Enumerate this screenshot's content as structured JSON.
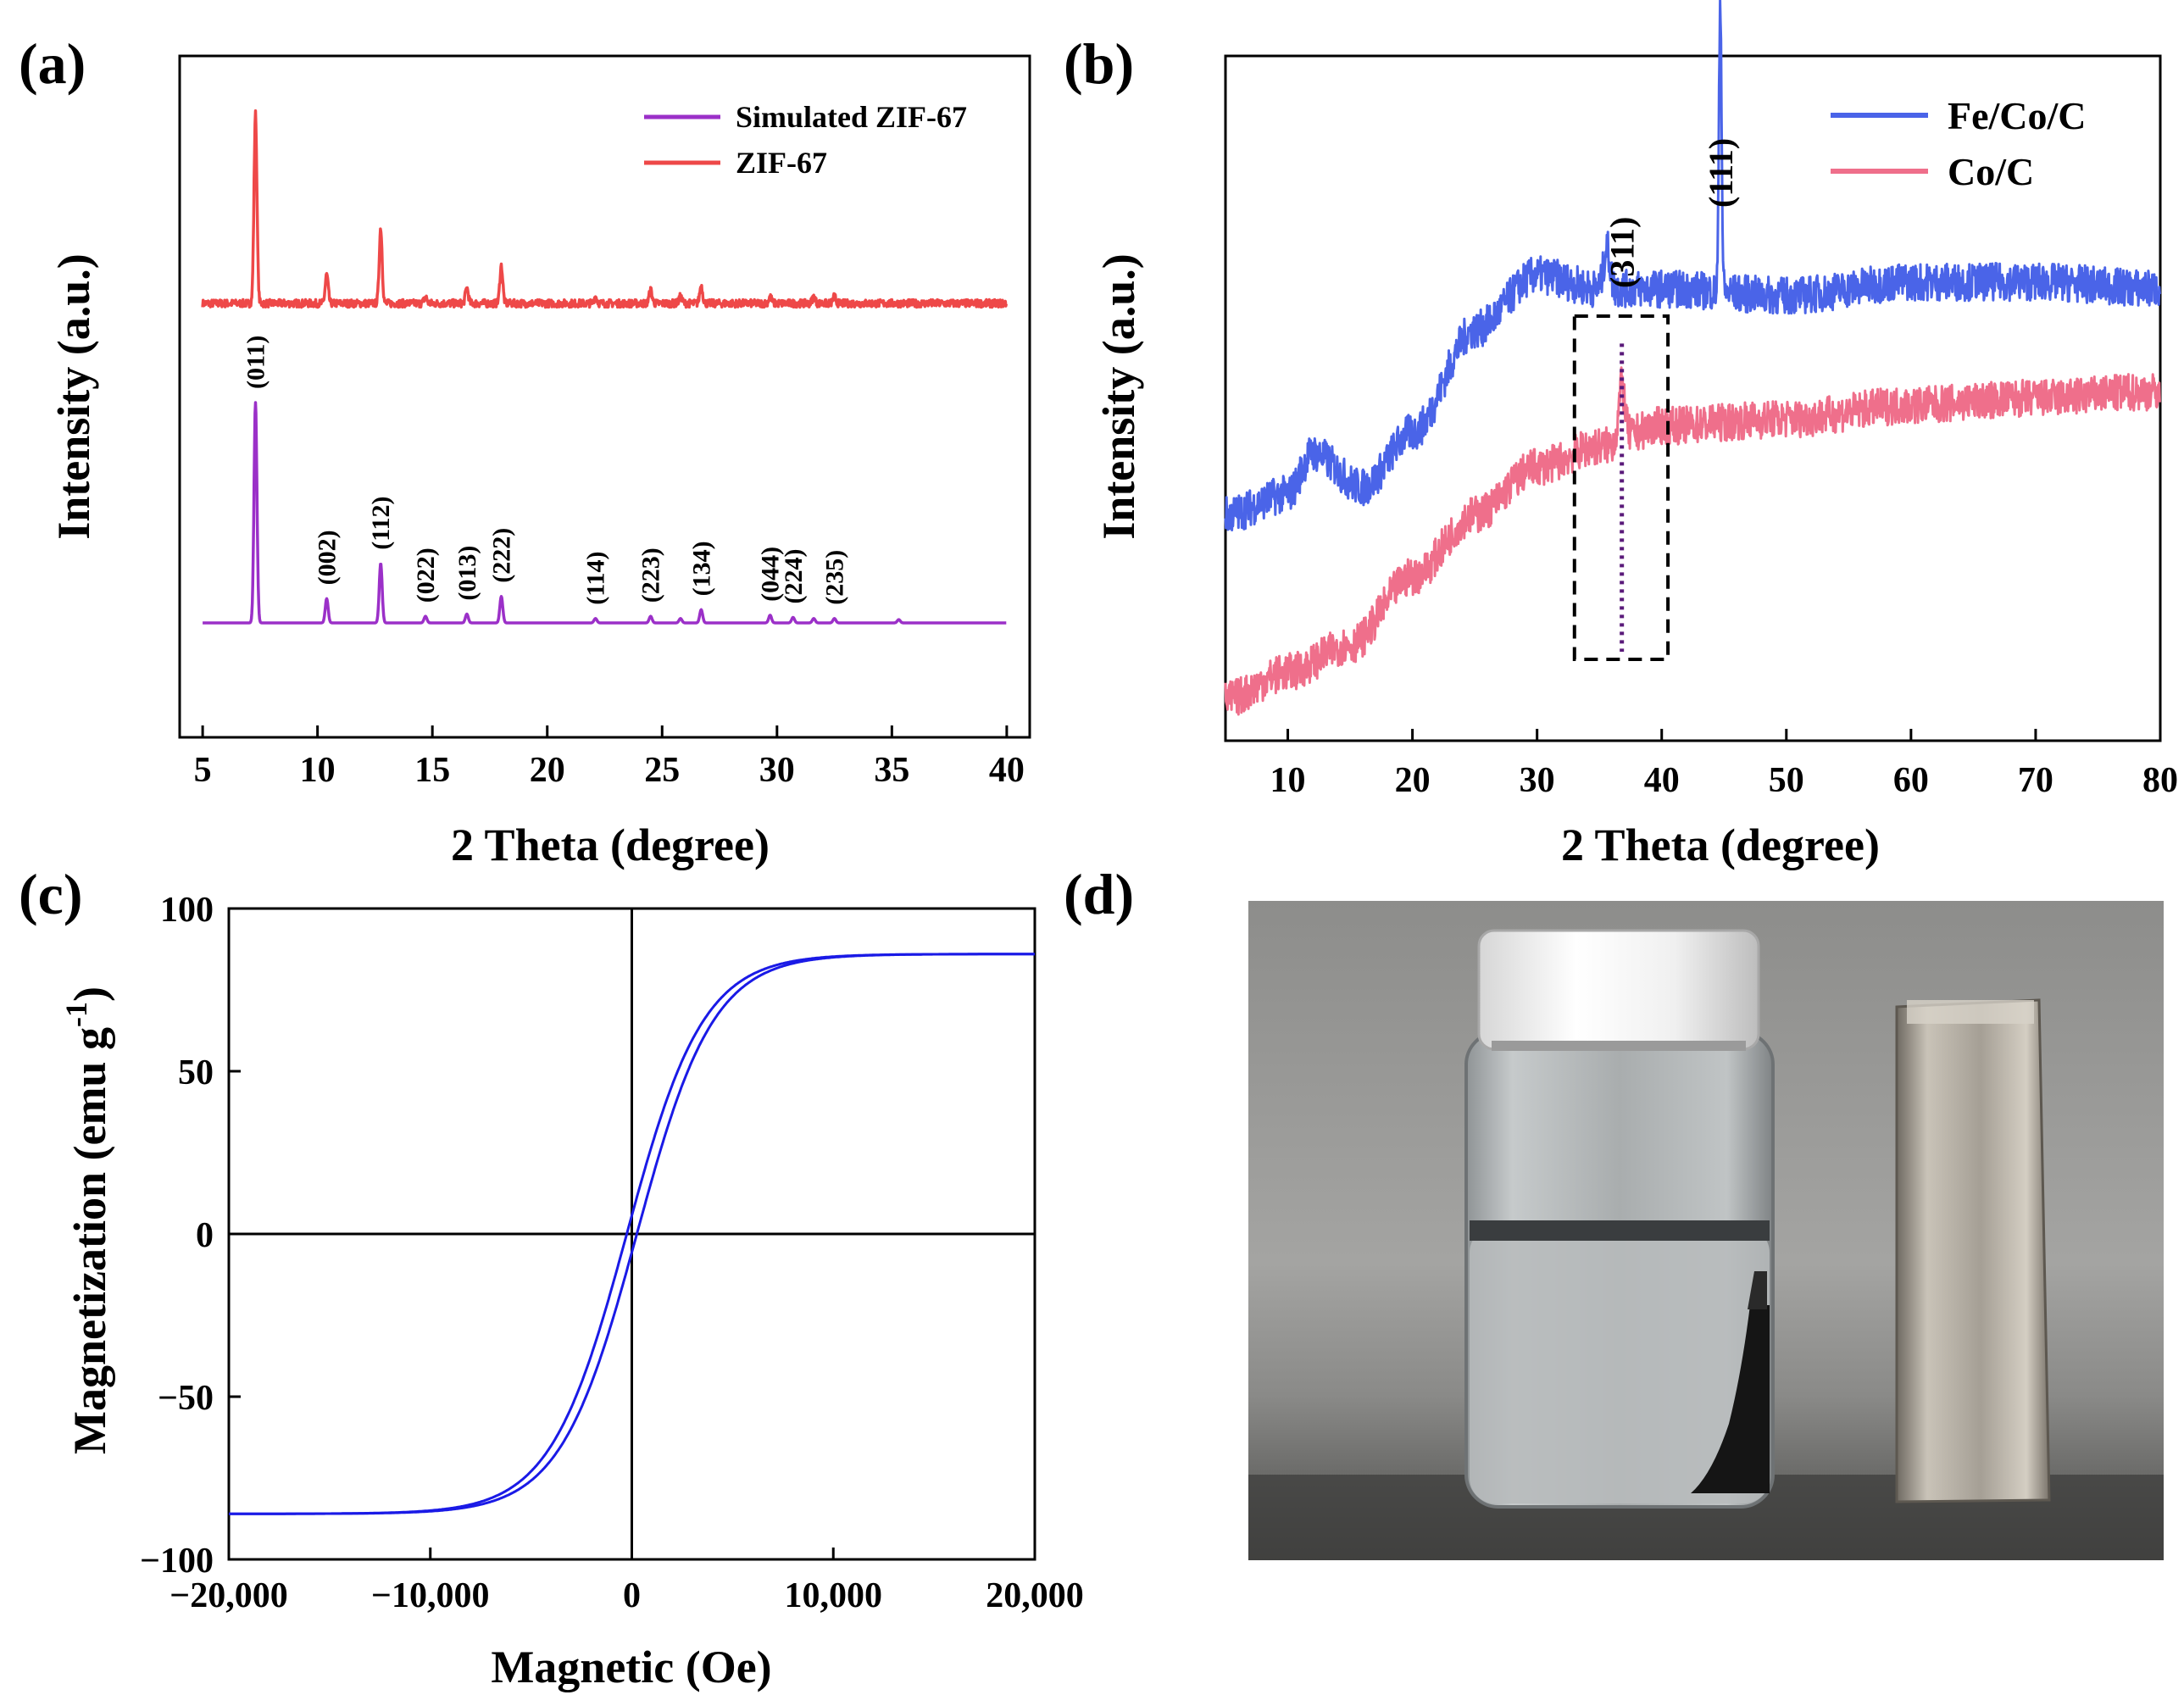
{
  "chart_data": [
    {
      "id": "a",
      "panel_label": "(a)",
      "type": "line",
      "xlabel": "2 Theta (degree)",
      "ylabel": "Intensity (a.u.)",
      "xlim": [
        4,
        41
      ],
      "x_ticks": [
        5,
        10,
        15,
        20,
        25,
        30,
        35,
        40
      ],
      "y_ticks_visible": false,
      "legend_position": "top-right",
      "series": [
        {
          "name": "Simulated ZIF-67",
          "color": "#9b30c8",
          "baseline": 0.0,
          "peaks": [
            [
              7.3,
              1.0
            ],
            [
              10.4,
              0.11
            ],
            [
              12.75,
              0.27
            ],
            [
              14.7,
              0.03
            ],
            [
              16.5,
              0.04
            ],
            [
              18.0,
              0.12
            ],
            [
              22.1,
              0.02
            ],
            [
              24.5,
              0.03
            ],
            [
              25.8,
              0.02
            ],
            [
              26.7,
              0.06
            ],
            [
              29.7,
              0.035
            ],
            [
              30.7,
              0.025
            ],
            [
              31.6,
              0.02
            ],
            [
              32.5,
              0.02
            ],
            [
              35.3,
              0.015
            ]
          ]
        },
        {
          "name": "ZIF-67",
          "color": "#ee4848",
          "baseline": 1.45,
          "peaks": [
            [
              7.3,
              0.86
            ],
            [
              10.4,
              0.13
            ],
            [
              12.75,
              0.34
            ],
            [
              14.7,
              0.03
            ],
            [
              16.5,
              0.07
            ],
            [
              18.0,
              0.17
            ],
            [
              22.1,
              0.03
            ],
            [
              24.5,
              0.06
            ],
            [
              25.8,
              0.03
            ],
            [
              26.7,
              0.08
            ],
            [
              29.7,
              0.03
            ],
            [
              31.6,
              0.03
            ],
            [
              32.5,
              0.03
            ]
          ]
        }
      ],
      "peak_labels": [
        {
          "text": "(011)",
          "x": 7.3
        },
        {
          "text": "(002)",
          "x": 10.4
        },
        {
          "text": "(112)",
          "x": 12.75
        },
        {
          "text": "(022)",
          "x": 14.7
        },
        {
          "text": "(013)",
          "x": 16.5
        },
        {
          "text": "(222)",
          "x": 18.0
        },
        {
          "text": "(114)",
          "x": 22.1
        },
        {
          "text": "(223)",
          "x": 24.5
        },
        {
          "text": "(134)",
          "x": 26.7
        },
        {
          "text": "(044)",
          "x": 29.7
        },
        {
          "text": "(224)",
          "x": 30.7
        },
        {
          "text": "(235)",
          "x": 32.5
        }
      ]
    },
    {
      "id": "b",
      "panel_label": "(b)",
      "type": "line",
      "xlabel": "2 Theta (degree)",
      "ylabel": "Intensity (a.u.)",
      "xlim": [
        5,
        80
      ],
      "x_ticks": [
        10,
        20,
        30,
        40,
        50,
        60,
        70,
        80
      ],
      "y_ticks_visible": false,
      "legend_position": "top-right",
      "series": [
        {
          "name": "Fe/Co/C",
          "color": "#4a64e8",
          "profile": [
            [
              5,
              0.33
            ],
            [
              10,
              0.36
            ],
            [
              12,
              0.42
            ],
            [
              16,
              0.37
            ],
            [
              20,
              0.45
            ],
            [
              25,
              0.6
            ],
            [
              30,
              0.68
            ],
            [
              35,
              0.66
            ],
            [
              40,
              0.66
            ],
            [
              50,
              0.65
            ],
            [
              60,
              0.67
            ],
            [
              70,
              0.67
            ],
            [
              80,
              0.66
            ]
          ],
          "peaks": [
            [
              35.6,
              0.06
            ],
            [
              44.7,
              0.43
            ]
          ]
        },
        {
          "name": "Co/C",
          "color": "#ef6f8b",
          "profile": [
            [
              5,
              0.06
            ],
            [
              10,
              0.1
            ],
            [
              15,
              0.14
            ],
            [
              20,
              0.24
            ],
            [
              25,
              0.33
            ],
            [
              30,
              0.4
            ],
            [
              35,
              0.43
            ],
            [
              40,
              0.46
            ],
            [
              50,
              0.47
            ],
            [
              60,
              0.49
            ],
            [
              70,
              0.5
            ],
            [
              80,
              0.51
            ]
          ],
          "peaks": [
            [
              36.8,
              0.08
            ]
          ]
        }
      ],
      "peak_labels": [
        {
          "text": "(311)",
          "x": 36.8
        },
        {
          "text": "(111)",
          "x": 44.7
        }
      ],
      "highlight_box_x": [
        33,
        40.5
      ]
    },
    {
      "id": "c",
      "panel_label": "(c)",
      "type": "line",
      "xlabel": "Magnetic (Oe)",
      "ylabel": "Magnetization (emu g",
      "ylabel_superscript": "-1",
      "ylabel_close": ")",
      "xlim": [
        -20000,
        20000
      ],
      "ylim": [
        -100,
        100
      ],
      "x_ticks": [
        "−20,000",
        "−10,000",
        "0",
        "10,000",
        "20,000"
      ],
      "y_ticks": [
        "100",
        "50",
        "0",
        "−50",
        "−100"
      ],
      "x_tick_values": [
        -20000,
        -10000,
        0,
        10000,
        20000
      ],
      "y_tick_values": [
        100,
        50,
        0,
        -50,
        -100
      ],
      "series": [
        {
          "name": "hysteresis loop",
          "color": "#1a1ae6",
          "saturation": 86,
          "field_scale": 3800,
          "coercivity": 250
        }
      ]
    }
  ],
  "photo": {
    "panel_label": "(d)",
    "description_icon": "vial-and-magnet-photo"
  }
}
